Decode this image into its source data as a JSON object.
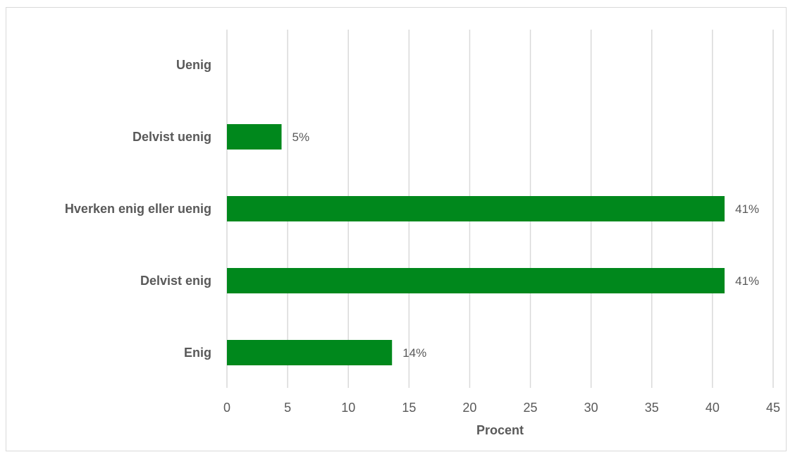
{
  "chart_data": {
    "type": "bar",
    "orientation": "horizontal",
    "categories": [
      "Uenig",
      "Delvist uenig",
      "Hverken enig eller uenig",
      "Delvist enig",
      "Enig"
    ],
    "values": [
      0,
      4.5,
      41,
      41,
      13.6
    ],
    "data_labels": [
      "",
      "5%",
      "41%",
      "41%",
      "14%"
    ],
    "xlabel": "Procent",
    "ylabel": "",
    "xlim": [
      0,
      45
    ],
    "x_ticks": [
      0,
      5,
      10,
      15,
      20,
      25,
      30,
      35,
      40,
      45
    ],
    "grid": true,
    "legend": "none",
    "bar_color": "#00881c"
  }
}
